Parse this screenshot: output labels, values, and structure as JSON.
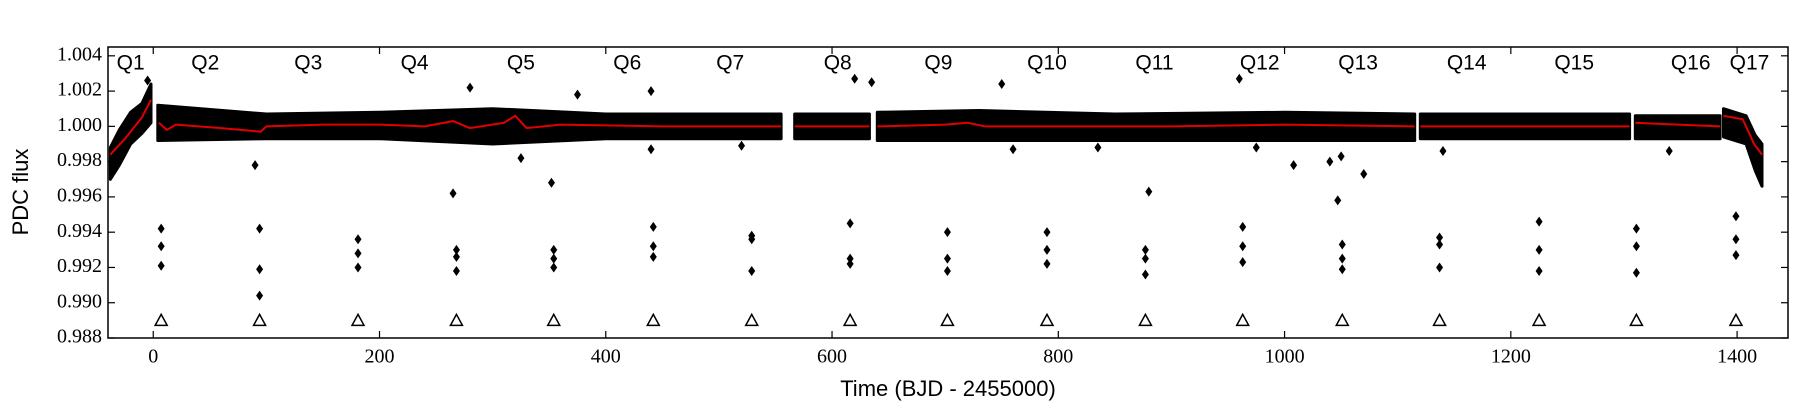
{
  "chart_data": {
    "type": "scatter",
    "xlabel": "Time (BJD - 2455000)",
    "ylabel": "PDC flux",
    "xlim": [
      -40,
      1445
    ],
    "ylim": [
      0.988,
      1.0045
    ],
    "xticks": [
      0,
      200,
      400,
      600,
      800,
      1000,
      1200,
      1400
    ],
    "yticks": [
      0.988,
      {
        "value": 0.99,
        "label": "0.990"
      },
      0.992,
      0.994,
      0.996,
      0.998,
      {
        "value": 1,
        "label": "1.000"
      },
      1.002,
      1.004
    ],
    "band": {
      "color": "#000000",
      "x": [
        -38,
        -30,
        -20,
        -10,
        -2,
        null,
        4,
        100,
        200,
        300,
        400,
        555,
        null,
        567,
        633,
        null,
        640,
        730,
        850,
        1000,
        1115,
        null,
        1120,
        1305,
        null,
        1310,
        1385,
        null,
        1388,
        1408,
        1416,
        1422
      ],
      "low": [
        0.997,
        0.9978,
        0.999,
        0.9996,
        1.0002,
        null,
        0.9992,
        0.9993,
        0.9993,
        0.999,
        0.9993,
        0.9993,
        null,
        0.9993,
        0.9993,
        null,
        0.9992,
        0.9992,
        0.9992,
        0.9992,
        0.9992,
        null,
        0.9993,
        0.9993,
        null,
        0.9993,
        0.9993,
        null,
        0.9994,
        0.999,
        0.9975,
        0.9966
      ],
      "high": [
        0.9988,
        0.9998,
        1.0008,
        1.0013,
        1.0024,
        null,
        1.0012,
        1.0007,
        1.0008,
        1.001,
        1.0007,
        1.0007,
        null,
        1.0007,
        1.0007,
        null,
        1.0008,
        1.0009,
        1.0007,
        1.0008,
        1.0007,
        null,
        1.0007,
        1.0007,
        null,
        1.0006,
        1.0006,
        null,
        1.001,
        1.0006,
        0.9995,
        0.999
      ]
    },
    "series": [
      {
        "marker": "diamond",
        "color": "#000000",
        "x": [
          7,
          7,
          7,
          94,
          94,
          94,
          181,
          181,
          181,
          268,
          268,
          268,
          354,
          354,
          354,
          442,
          442,
          442,
          529,
          529,
          529,
          616,
          616,
          616,
          702,
          702,
          702,
          790,
          790,
          790,
          877,
          877,
          877,
          963,
          963,
          963,
          1051,
          1051,
          1051,
          1137,
          1137,
          1137,
          1225,
          1225,
          1225,
          1311,
          1311,
          1311,
          1399,
          1399,
          1399,
          -5,
          90,
          265,
          280,
          325,
          352,
          375,
          440,
          440,
          520,
          620,
          635,
          750,
          760,
          835,
          880,
          960,
          975,
          1008,
          1040,
          1047,
          1050,
          1070,
          1140,
          1340
        ],
        "values": [
          0.9942,
          0.9932,
          0.9921,
          0.9942,
          0.9919,
          0.9904,
          0.9936,
          0.9928,
          0.992,
          0.993,
          0.9926,
          0.9918,
          0.993,
          0.9925,
          0.992,
          0.9943,
          0.9932,
          0.9926,
          0.9938,
          0.9936,
          0.9918,
          0.9945,
          0.9925,
          0.9922,
          0.994,
          0.9925,
          0.9918,
          0.994,
          0.993,
          0.9922,
          0.993,
          0.9925,
          0.9916,
          0.9943,
          0.9932,
          0.9923,
          0.9933,
          0.9925,
          0.9919,
          0.9937,
          0.9933,
          0.992,
          0.9946,
          0.993,
          0.9918,
          0.9942,
          0.9932,
          0.9917,
          0.9949,
          0.9936,
          0.9927,
          1.0026,
          0.9978,
          0.9962,
          1.0022,
          0.9982,
          0.9968,
          1.0018,
          1.002,
          0.9987,
          0.9989,
          1.0027,
          1.0025,
          1.0024,
          0.9987,
          0.9988,
          0.9963,
          1.0027,
          0.9988,
          0.9978,
          0.998,
          0.9958,
          0.9983,
          0.9973,
          0.9986,
          0.9986
        ]
      },
      {
        "marker": "line",
        "color": "#e00000",
        "x": [
          -38,
          -25,
          -10,
          -2,
          null,
          5,
          12,
          20,
          60,
          95,
          100,
          150,
          200,
          240,
          265,
          280,
          310,
          320,
          330,
          360,
          450,
          555,
          null,
          567,
          633,
          null,
          640,
          700,
          720,
          735,
          800,
          900,
          1000,
          1115,
          null,
          1120,
          1305,
          null,
          1310,
          1385,
          null,
          1388,
          1405,
          1415,
          1422
        ],
        "values": [
          0.9984,
          0.9993,
          1.0005,
          1.0015,
          null,
          1.0002,
          0.9998,
          1.0001,
          0.9999,
          0.9997,
          1,
          1.0001,
          1.0001,
          1,
          1.0003,
          0.9999,
          1.0002,
          1.0006,
          0.9999,
          1.0001,
          1,
          1,
          null,
          1,
          1,
          null,
          1,
          1.0001,
          1.0002,
          1,
          1,
          1,
          1.0001,
          1,
          null,
          1,
          1,
          null,
          1.0002,
          1,
          null,
          1.0006,
          1.0004,
          0.999,
          0.9984
        ]
      },
      {
        "marker": "triangle",
        "color": "#000000",
        "x": [
          7,
          94,
          181,
          268,
          354,
          442,
          529,
          616,
          702,
          790,
          877,
          963,
          1051,
          1137,
          1225,
          1311,
          1399
        ],
        "values": [
          0.989,
          0.989,
          0.989,
          0.989,
          0.989,
          0.989,
          0.989,
          0.989,
          0.989,
          0.989,
          0.989,
          0.989,
          0.989,
          0.989,
          0.989,
          0.989,
          0.989
        ]
      }
    ],
    "annotations": [
      {
        "text": "Q1",
        "x": -20
      },
      {
        "text": "Q2",
        "x": 46
      },
      {
        "text": "Q3",
        "x": 137
      },
      {
        "text": "Q4",
        "x": 231
      },
      {
        "text": "Q5",
        "x": 325
      },
      {
        "text": "Q6",
        "x": 419
      },
      {
        "text": "Q7",
        "x": 510
      },
      {
        "text": "Q8",
        "x": 605
      },
      {
        "text": "Q9",
        "x": 694
      },
      {
        "text": "Q10",
        "x": 790
      },
      {
        "text": "Q11",
        "x": 885
      },
      {
        "text": "Q12",
        "x": 978
      },
      {
        "text": "Q13",
        "x": 1065
      },
      {
        "text": "Q14",
        "x": 1161
      },
      {
        "text": "Q15",
        "x": 1256
      },
      {
        "text": "Q16",
        "x": 1359
      },
      {
        "text": "Q17",
        "x": 1411
      }
    ]
  }
}
